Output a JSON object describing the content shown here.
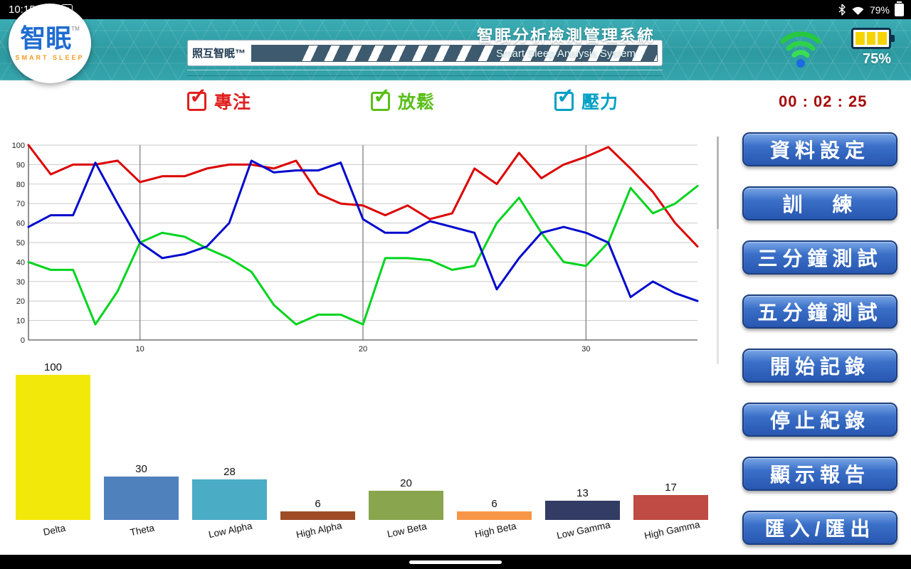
{
  "status_bar": {
    "time": "10:15",
    "battery": "79%",
    "icons": [
      "photo-icon",
      "m-app-icon",
      "bluetooth-icon",
      "wifi-icon",
      "battery-icon"
    ]
  },
  "header": {
    "logo_zh": "智眠",
    "logo_tm": "TM",
    "logo_en": "SMART SLEEP",
    "device_label": "照互智眠™",
    "title_zh": "智眠分析檢測管理系統",
    "title_en": "Smart Sleep Analysis System",
    "battery_pct": "75%",
    "icons": [
      "wifi-signal-icon",
      "battery-level-icon"
    ],
    "accent_color": "#2d9aa1"
  },
  "controls": {
    "timer": "00 : 02 : 25",
    "checkboxes": [
      {
        "label": "專注",
        "color": "#e02020",
        "checked": true
      },
      {
        "label": "放鬆",
        "color": "#5abf19",
        "checked": true
      },
      {
        "label": "壓力",
        "color": "#00a0c4",
        "checked": true
      }
    ]
  },
  "sidebar": {
    "button_color": "#2f63c0",
    "buttons": [
      {
        "label": "資料設定"
      },
      {
        "label": "訓　練"
      },
      {
        "label": "三分鐘測試"
      },
      {
        "label": "五分鐘測試"
      },
      {
        "label": "開始記錄"
      },
      {
        "label": "停止紀錄"
      },
      {
        "label": "顯示報告"
      },
      {
        "label": "匯入/匯出"
      }
    ]
  },
  "chart_data": [
    {
      "type": "line",
      "title": "",
      "xlabel": "",
      "ylabel": "",
      "x_range": [
        5,
        35
      ],
      "x_ticks": [
        10,
        20,
        30
      ],
      "ylim": [
        0,
        100
      ],
      "y_tick_step": 10,
      "grid": true,
      "legend_position": "none",
      "series": [
        {
          "name": "專注",
          "color": "#dc0000",
          "values": [
            100,
            85,
            90,
            90,
            92,
            81,
            84,
            84,
            88,
            90,
            90,
            88,
            92,
            75,
            70,
            69,
            64,
            69,
            62,
            65,
            88,
            80,
            96,
            83,
            90,
            94,
            99,
            88,
            76,
            60,
            48
          ]
        },
        {
          "name": "放鬆",
          "color": "#00d41e",
          "values": [
            40,
            36,
            36,
            8,
            25,
            50,
            55,
            53,
            47,
            42,
            35,
            18,
            8,
            13,
            13,
            8,
            42,
            42,
            41,
            36,
            38,
            60,
            73,
            55,
            40,
            38,
            50,
            78,
            65,
            70,
            79
          ]
        },
        {
          "name": "壓力",
          "color": "#0008cc",
          "values": [
            58,
            64,
            64,
            91,
            70,
            50,
            42,
            44,
            48,
            60,
            92,
            86,
            87,
            87,
            91,
            62,
            55,
            55,
            61,
            58,
            55,
            26,
            42,
            55,
            58,
            55,
            50,
            22,
            30,
            24,
            20
          ]
        }
      ]
    },
    {
      "type": "bar",
      "title": "",
      "categories": [
        "Delta",
        "Theta",
        "Low Alpha",
        "High Alpha",
        "Low Beta",
        "High Beta",
        "Low Gamma",
        "High Gamma"
      ],
      "values": [
        100,
        30,
        28,
        6,
        20,
        6,
        13,
        17
      ],
      "colors": [
        "#f2e90a",
        "#4f81bd",
        "#4bacc6",
        "#9e4b26",
        "#89a54e",
        "#f79646",
        "#323c64",
        "#bf4b44"
      ],
      "ylim": [
        0,
        100
      ],
      "grid": false,
      "value_labels": true
    }
  ]
}
